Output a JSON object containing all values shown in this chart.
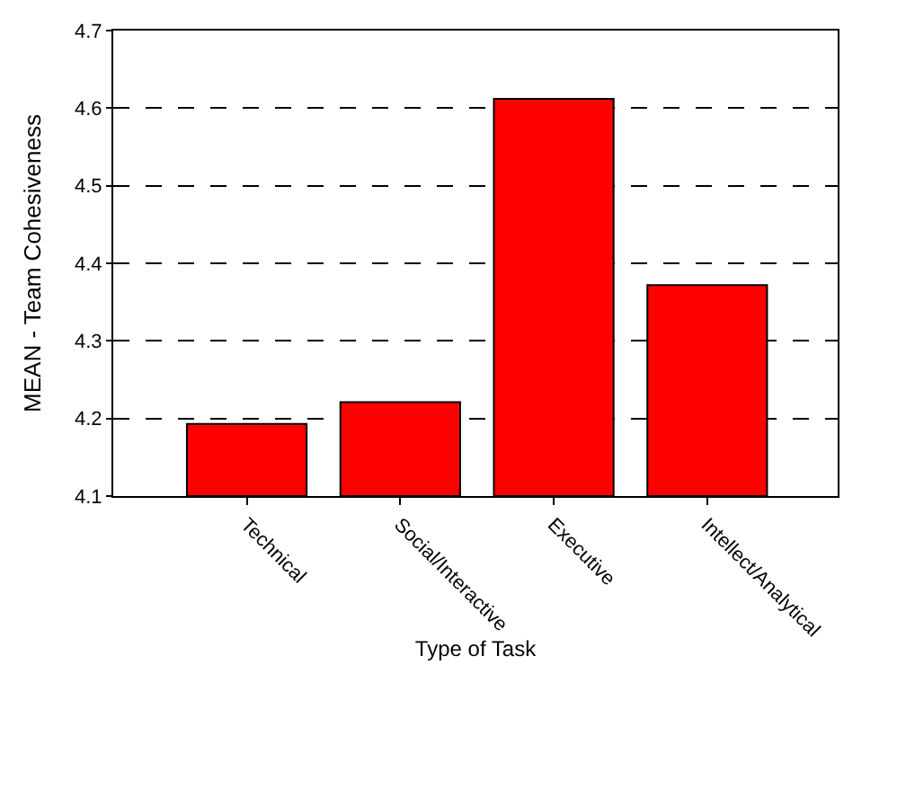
{
  "chart_data": {
    "type": "bar",
    "categories": [
      "Technical",
      "Social/Interactive",
      "Executive",
      "Intellect/Analytical"
    ],
    "values": [
      4.193,
      4.221,
      4.612,
      4.372
    ],
    "color": "#ff0000",
    "xlabel": "Type of Task",
    "ylabel": "MEAN - Team Cohesiveness",
    "ylim": [
      4.1,
      4.7
    ],
    "yticks": [
      4.1,
      4.2,
      4.3,
      4.4,
      4.5,
      4.6,
      4.7
    ],
    "grid": "y",
    "legend": false
  }
}
